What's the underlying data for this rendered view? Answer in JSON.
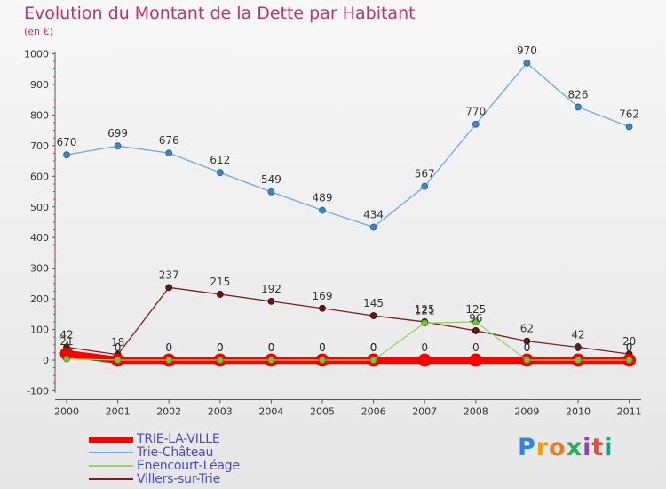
{
  "header": {
    "title": "Evolution du Montant de la Dette par Habitant",
    "subtitle": "(en €)"
  },
  "brand": {
    "name": "Proxiti"
  },
  "chart_data": {
    "type": "line",
    "title": "Evolution du Montant de la Dette par Habitant",
    "subtitle": "(en €)",
    "xlabel": "",
    "ylabel": "",
    "ylim": [
      -100,
      1000
    ],
    "yticks": [
      -100,
      0,
      100,
      200,
      300,
      400,
      500,
      600,
      700,
      800,
      900,
      1000
    ],
    "categories": [
      "2000",
      "2001",
      "2002",
      "2003",
      "2004",
      "2005",
      "2006",
      "2007",
      "2008",
      "2009",
      "2010",
      "2011"
    ],
    "grid": false,
    "legend_position": "bottom-left",
    "series": [
      {
        "name": "TRIE-LA-VILLE",
        "color": "#ff0000",
        "values": [
          21,
          0,
          0,
          0,
          0,
          0,
          0,
          0,
          0,
          0,
          0,
          0
        ],
        "labels": [
          "21",
          "0",
          "0",
          "0",
          "0",
          "0",
          "0",
          "0",
          "0",
          "0",
          "0",
          "0"
        ]
      },
      {
        "name": "Trie-Château",
        "color": "#6fa8dc",
        "values": [
          670,
          699,
          676,
          612,
          549,
          489,
          434,
          567,
          770,
          970,
          826,
          762
        ],
        "labels": [
          "670",
          "699",
          "676",
          "612",
          "549",
          "489",
          "434",
          "567",
          "770",
          "970",
          "826",
          "762"
        ]
      },
      {
        "name": "Enencourt-Léage",
        "color": "#93d36c",
        "values": [
          4,
          0,
          0,
          0,
          0,
          0,
          0,
          121,
          125,
          0,
          0,
          0
        ],
        "labels": [
          "4",
          "0",
          "0",
          "0",
          "0",
          "0",
          "0",
          "121",
          "125",
          "0",
          "0",
          "0"
        ]
      },
      {
        "name": "Villers-sur-Trie",
        "color": "#7a1f1f",
        "values": [
          42,
          18,
          237,
          215,
          192,
          169,
          145,
          125,
          96,
          62,
          42,
          20
        ],
        "labels": [
          "42",
          "18",
          "237",
          "215",
          "192",
          "169",
          "145",
          "125",
          "96",
          "62",
          "42",
          "20"
        ]
      }
    ]
  }
}
